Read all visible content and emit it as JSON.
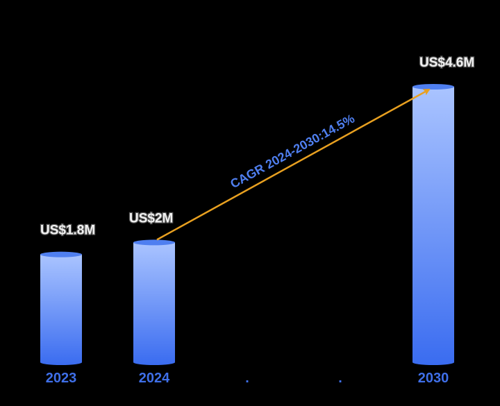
{
  "chart_data": {
    "type": "bar",
    "categories": [
      "2023",
      "2024",
      ".",
      ".",
      "2030"
    ],
    "values": [
      1.8,
      2.0,
      null,
      null,
      4.6
    ],
    "value_labels": [
      "US$1.8M",
      "US$2M",
      "",
      "",
      "US$4.6M"
    ],
    "ylim": [
      0,
      4.6
    ],
    "grid": false,
    "annotation": {
      "text": "CAGR 2024-2030:14.5%",
      "from_category": "2024",
      "to_category": "2030"
    }
  },
  "colors": {
    "background": "#000000",
    "bar_top": "#aac4ff",
    "bar_bottom": "#3a6cf0",
    "bar_cap": "#4f7ff0",
    "arrow": "#e8a020",
    "category_text": "#3f6fe8",
    "annotation_text": "#4f7ff0"
  }
}
